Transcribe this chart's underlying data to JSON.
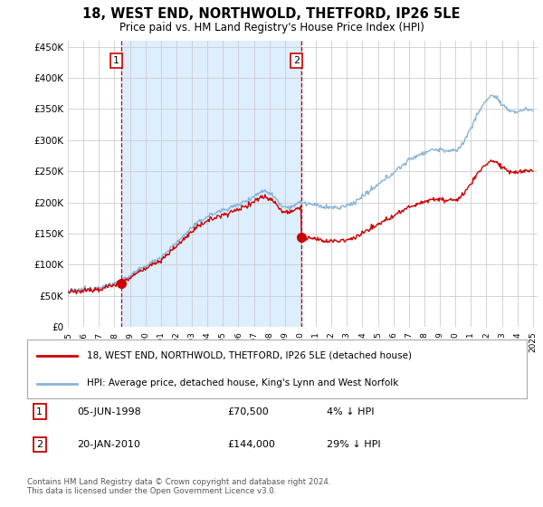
{
  "title": "18, WEST END, NORTHWOLD, THETFORD, IP26 5LE",
  "subtitle": "Price paid vs. HM Land Registry's House Price Index (HPI)",
  "ytick_values": [
    0,
    50000,
    100000,
    150000,
    200000,
    250000,
    300000,
    350000,
    400000,
    450000
  ],
  "ylim": [
    0,
    460000
  ],
  "xlim_start": 1995.0,
  "xlim_end": 2025.3,
  "sale1": {
    "date_num": 1998.43,
    "price": 70500,
    "label": "1"
  },
  "sale2": {
    "date_num": 2010.05,
    "price": 144000,
    "label": "2"
  },
  "legend_line1": "18, WEST END, NORTHWOLD, THETFORD, IP26 5LE (detached house)",
  "legend_line2": "HPI: Average price, detached house, King's Lynn and West Norfolk",
  "annotation1_date": "05-JUN-1998",
  "annotation1_price": "£70,500",
  "annotation1_pct": "4% ↓ HPI",
  "annotation2_date": "20-JAN-2010",
  "annotation2_price": "£144,000",
  "annotation2_pct": "29% ↓ HPI",
  "footer": "Contains HM Land Registry data © Crown copyright and database right 2024.\nThis data is licensed under the Open Government Licence v3.0.",
  "line_color_sold": "#cc0000",
  "line_color_hpi": "#88b4d8",
  "shade_color": "#ddeeff",
  "background_color": "#ffffff",
  "grid_color": "#cccccc"
}
